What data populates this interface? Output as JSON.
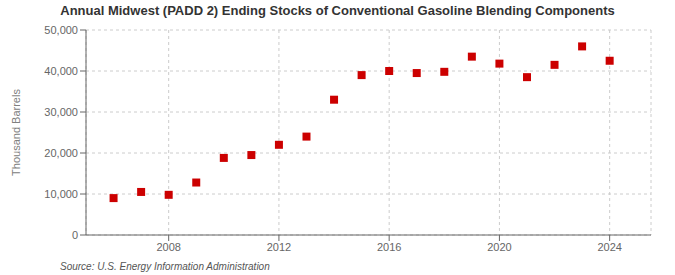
{
  "chart_data": {
    "type": "scatter",
    "title": "Annual Midwest (PADD 2) Ending Stocks of Conventional Gasoline Blending Components",
    "y_label": "Thousand Barrels",
    "annotation": "Source: U.S. Energy Information Administration",
    "x": [
      2006,
      2007,
      2008,
      2009,
      2010,
      2011,
      2012,
      2013,
      2014,
      2015,
      2016,
      2017,
      2018,
      2019,
      2020,
      2021,
      2022,
      2023,
      2024
    ],
    "values": [
      9000,
      10500,
      9800,
      12800,
      18800,
      19500,
      22000,
      24000,
      33000,
      39000,
      40000,
      39500,
      39800,
      43500,
      41800,
      38500,
      41500,
      46000,
      42500
    ],
    "color": "#cc0000",
    "marker": "square",
    "xlim": [
      2005.0,
      2025.5
    ],
    "xticks": [
      2008,
      2012,
      2016,
      2020,
      2024
    ],
    "ylim": [
      0,
      50000
    ],
    "yticks": [
      0,
      {
        "value": 10000,
        "label": "10,000"
      },
      {
        "value": 20000,
        "label": "20,000"
      },
      {
        "value": 30000,
        "label": "30,000"
      },
      {
        "value": 40000,
        "label": "40,000"
      },
      {
        "value": 50000,
        "label": "50,000"
      }
    ],
    "grid": true
  }
}
